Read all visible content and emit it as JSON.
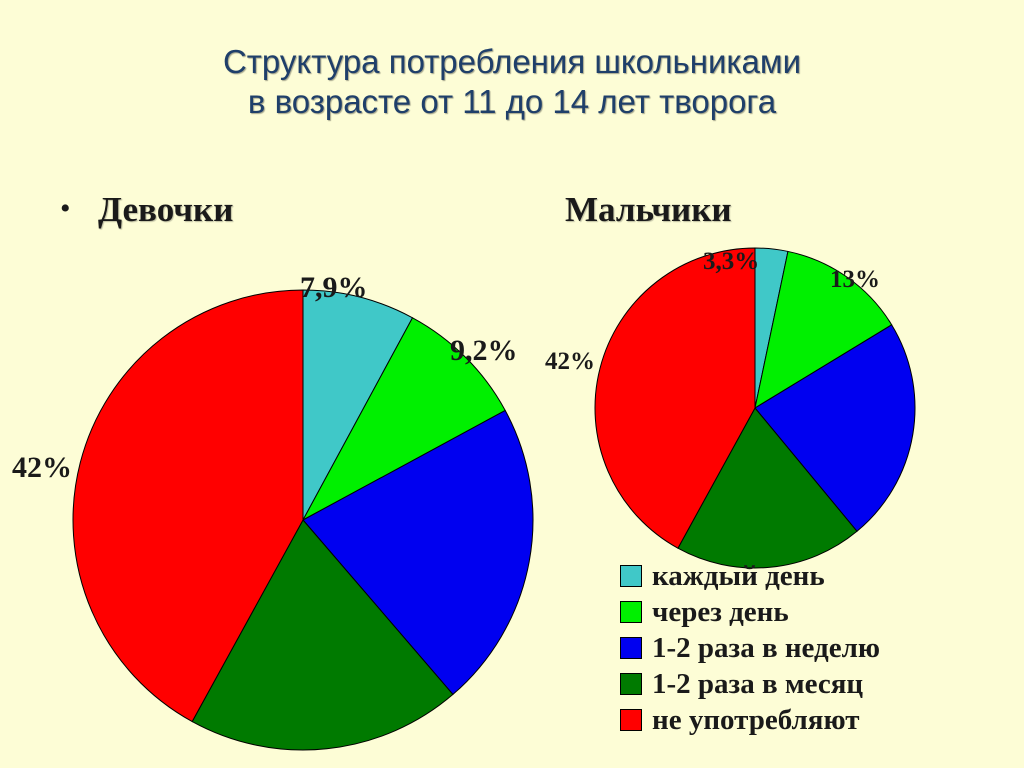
{
  "title": {
    "line1": "Структура потребления школьниками",
    "line2": "в возрасте от 11 до 14 лет творога"
  },
  "colors": {
    "каждый день": "#40c8c8",
    "через день": "#00f000",
    "1-2 раза в неделю": "#0000f0",
    "1-2 раза в месяц": "#007a00",
    "не употребляют": "#ff0000"
  },
  "chart_data": [
    {
      "type": "pie",
      "title": "Девочки",
      "categories": [
        "каждый день",
        "через день",
        "1-2 раза в неделю",
        "1-2 раза в месяц",
        "не употребляют"
      ],
      "values": [
        7.9,
        9.2,
        21.6,
        19.3,
        42
      ],
      "data_labels": [
        "7,9%",
        "9,2%",
        "",
        "",
        "42%"
      ]
    },
    {
      "type": "pie",
      "title": "Мальчики",
      "categories": [
        "каждый день",
        "через день",
        "1-2 раза в неделю",
        "1-2 раза в месяц",
        "не упот­ребляют"
      ],
      "values": [
        3.3,
        13,
        22.7,
        19,
        42
      ],
      "data_labels": [
        "3,3%",
        "13%",
        "",
        "",
        "42%"
      ]
    }
  ],
  "legend": {
    "items": [
      "каждый день",
      "через день",
      "1-2 раза в неделю",
      "1-2 раза в месяц",
      "не употребляют"
    ],
    "position": "bottom-right"
  }
}
